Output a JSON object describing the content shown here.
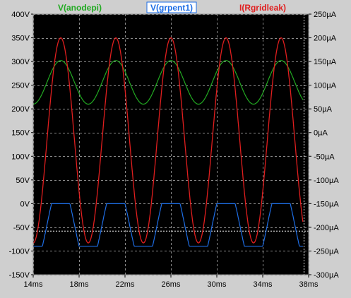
{
  "chart_data": {
    "type": "line",
    "title": "",
    "x_axis": {
      "range_ms": [
        14,
        38
      ],
      "ticks": [
        "14ms",
        "18ms",
        "22ms",
        "26ms",
        "30ms",
        "34ms",
        "38ms"
      ],
      "tick_values_ms": [
        14,
        18,
        22,
        26,
        30,
        34,
        38
      ]
    },
    "y_left": {
      "range_V": [
        -150,
        400
      ],
      "ticks": [
        "400V",
        "350V",
        "300V",
        "250V",
        "200V",
        "150V",
        "100V",
        "50V",
        "0V",
        "-50V",
        "-100V",
        "-150V"
      ],
      "tick_values_V": [
        400,
        350,
        300,
        250,
        200,
        150,
        100,
        50,
        0,
        -50,
        -100,
        -150
      ]
    },
    "y_right": {
      "range_uA": [
        -300,
        250
      ],
      "ticks": [
        "250µA",
        "200µA",
        "150µA",
        "100µA",
        "50µA",
        "0µA",
        "-50µA",
        "-100µA",
        "-150µA",
        "-200µA",
        "-250µA",
        "-300µA"
      ],
      "tick_values_uA": [
        250,
        200,
        150,
        100,
        50,
        0,
        -50,
        -100,
        -150,
        -200,
        -250,
        -300
      ]
    },
    "grid": true,
    "cursor_x_ms": 37.6,
    "cursor_y_V": -58,
    "series": [
      {
        "name": "V(anodepi)",
        "color": "#22aa22",
        "axis": "left",
        "period_ms": 4.8,
        "min_V": 210,
        "max_V": 302,
        "peaks_x_ms": [
          16.4,
          21.2,
          26.0,
          30.8,
          35.6
        ],
        "troughs_x_ms": [
          18.8,
          23.6,
          28.4,
          33.2
        ]
      },
      {
        "name": "V(grpent1)",
        "color": "#1e6ee6",
        "axis": "left",
        "period_ms": 4.8,
        "min_V": -90,
        "max_V": 0,
        "flat_top_at_V": 0,
        "troughs_x_ms": [
          18.8,
          23.6,
          28.4,
          33.2
        ]
      },
      {
        "name": "I(Rgridleak)",
        "color": "#e01e1e",
        "axis": "right",
        "period_ms": 4.8,
        "min_uA": -233,
        "max_uA": 200,
        "peaks_x_ms": [
          16.4,
          21.2,
          26.0,
          30.8,
          35.6
        ],
        "troughs_x_ms": [
          18.8,
          23.6,
          28.4,
          33.2
        ]
      }
    ]
  }
}
